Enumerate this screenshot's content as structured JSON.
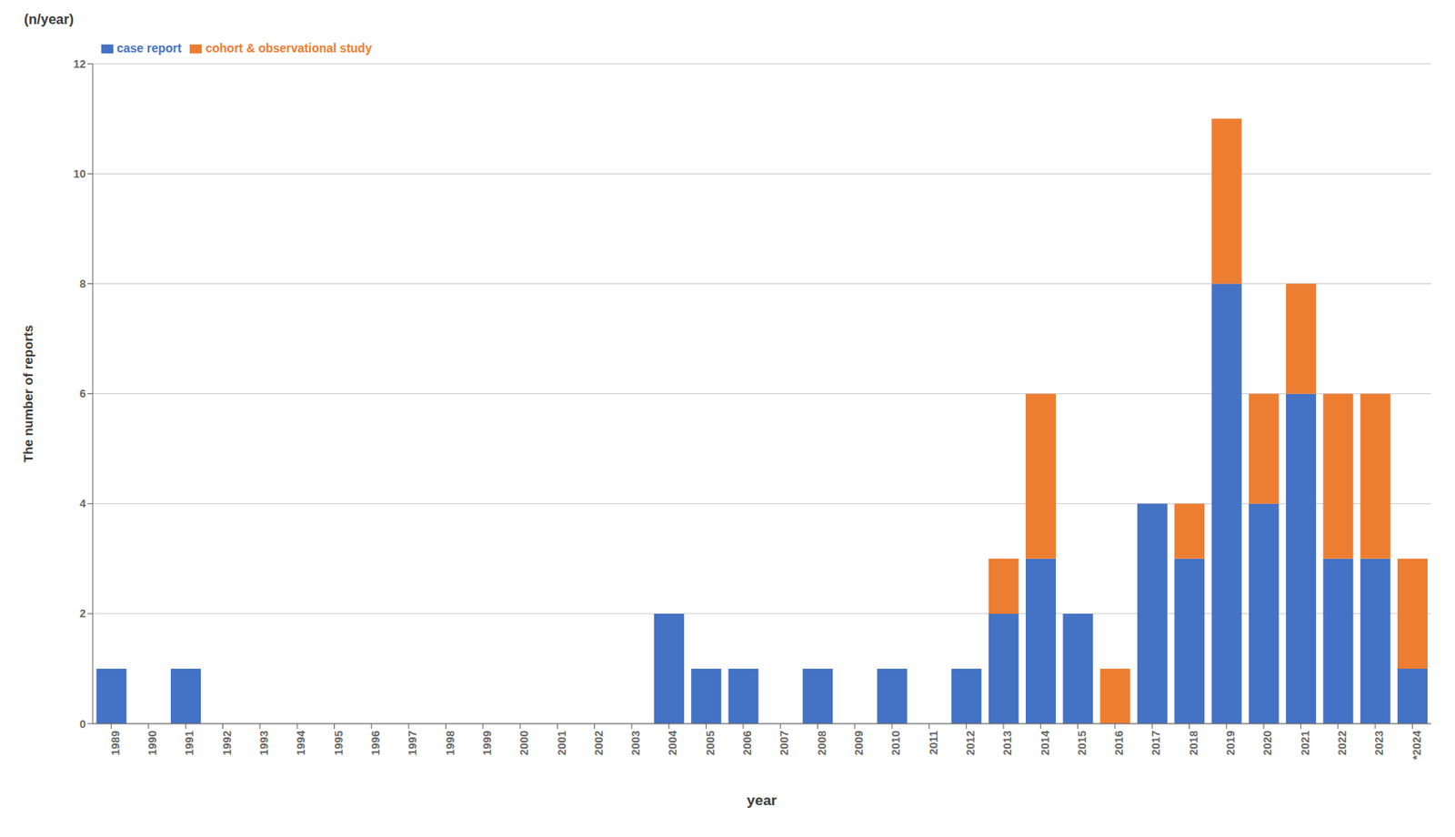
{
  "chart_data": {
    "type": "bar",
    "stacked": true,
    "categories": [
      "1989",
      "1990",
      "1991",
      "1992",
      "1993",
      "1994",
      "1995",
      "1996",
      "1997",
      "1998",
      "1999",
      "2000",
      "2001",
      "2002",
      "2003",
      "2004",
      "2005",
      "2006",
      "2007",
      "2008",
      "2009",
      "2010",
      "2011",
      "2012",
      "2013",
      "2014",
      "2015",
      "2016",
      "2017",
      "2018",
      "2019",
      "2020",
      "2021",
      "2022",
      "2023",
      "*2024"
    ],
    "series": [
      {
        "name": "case report",
        "color": "#4472C4",
        "values": [
          1,
          0,
          1,
          0,
          0,
          0,
          0,
          0,
          0,
          0,
          0,
          0,
          0,
          0,
          0,
          2,
          1,
          1,
          0,
          1,
          0,
          1,
          0,
          1,
          2,
          3,
          2,
          0,
          4,
          3,
          8,
          4,
          6,
          3,
          3,
          1
        ]
      },
      {
        "name": "cohort & observational study",
        "color": "#ED7D31",
        "values": [
          0,
          0,
          0,
          0,
          0,
          0,
          0,
          0,
          0,
          0,
          0,
          0,
          0,
          0,
          0,
          0,
          0,
          0,
          0,
          0,
          0,
          0,
          0,
          0,
          1,
          3,
          0,
          1,
          0,
          1,
          3,
          2,
          2,
          3,
          3,
          2
        ]
      }
    ],
    "xlabel": "year",
    "ylabel": "The number of reports",
    "annotations": [
      "(n/year)"
    ],
    "ylim": [
      0,
      12
    ],
    "yticks": [
      0,
      2,
      4,
      6,
      8,
      10,
      12
    ],
    "grid": true,
    "legend": "upper left"
  }
}
